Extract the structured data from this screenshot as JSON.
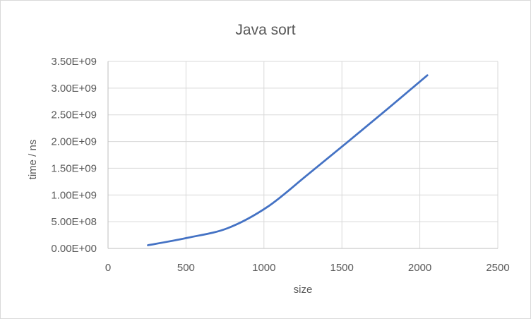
{
  "chart_data": {
    "type": "line",
    "title": "Java sort",
    "xlabel": "size",
    "ylabel": "time / ns",
    "xlim": [
      0,
      2500
    ],
    "ylim": [
      0,
      3500000000
    ],
    "x_ticks": [
      0,
      500,
      1000,
      1500,
      2000,
      2500
    ],
    "x_tick_labels": [
      "0",
      "500",
      "1000",
      "1500",
      "2000",
      "2500"
    ],
    "y_ticks": [
      0,
      500000000,
      1000000000,
      1500000000,
      2000000000,
      2500000000,
      3000000000,
      3500000000
    ],
    "y_tick_labels": [
      "0.00E+00",
      "5.00E+08",
      "1.00E+09",
      "1.50E+09",
      "2.00E+09",
      "2.50E+09",
      "3.00E+09",
      "3.50E+09"
    ],
    "grid": true,
    "legend": false,
    "series": [
      {
        "color": "#4472c4",
        "x": [
          256,
          512,
          768,
          1024,
          1280,
          1536,
          1792,
          2048
        ],
        "values": [
          60000000,
          200000000,
          380000000,
          780000000,
          1380000000,
          1990000000,
          2610000000,
          3240000000
        ]
      }
    ]
  }
}
